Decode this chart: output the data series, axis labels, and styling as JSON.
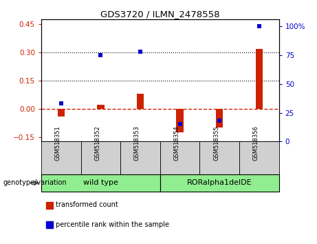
{
  "title": "GDS3720 / ILMN_2478558",
  "samples": [
    "GSM518351",
    "GSM518352",
    "GSM518353",
    "GSM518354",
    "GSM518355",
    "GSM518356"
  ],
  "transformed_count": [
    -0.04,
    0.02,
    0.08,
    -0.125,
    -0.1,
    0.32
  ],
  "percentile_rank_pct": [
    33,
    75,
    78,
    15,
    18,
    100
  ],
  "ylim_left": [
    -0.175,
    0.475
  ],
  "ylim_right": [
    0,
    106
  ],
  "yticks_left": [
    -0.15,
    0.0,
    0.15,
    0.3,
    0.45
  ],
  "yticks_right": [
    0,
    25,
    50,
    75,
    100
  ],
  "hlines": [
    0.15,
    0.3
  ],
  "bar_color": "#cc2200",
  "point_color": "#0000cc",
  "zero_line_color": "#cc2200",
  "group_label": "genotype/variation",
  "group1_label": "wild type",
  "group2_label": "RORalpha1delDE",
  "group_color": "#90ee90",
  "sample_bg_color": "#d0d0d0",
  "legend_items": [
    {
      "label": "transformed count",
      "color": "#cc2200"
    },
    {
      "label": "percentile rank within the sample",
      "color": "#0000cc"
    }
  ],
  "bar_width": 0.18
}
